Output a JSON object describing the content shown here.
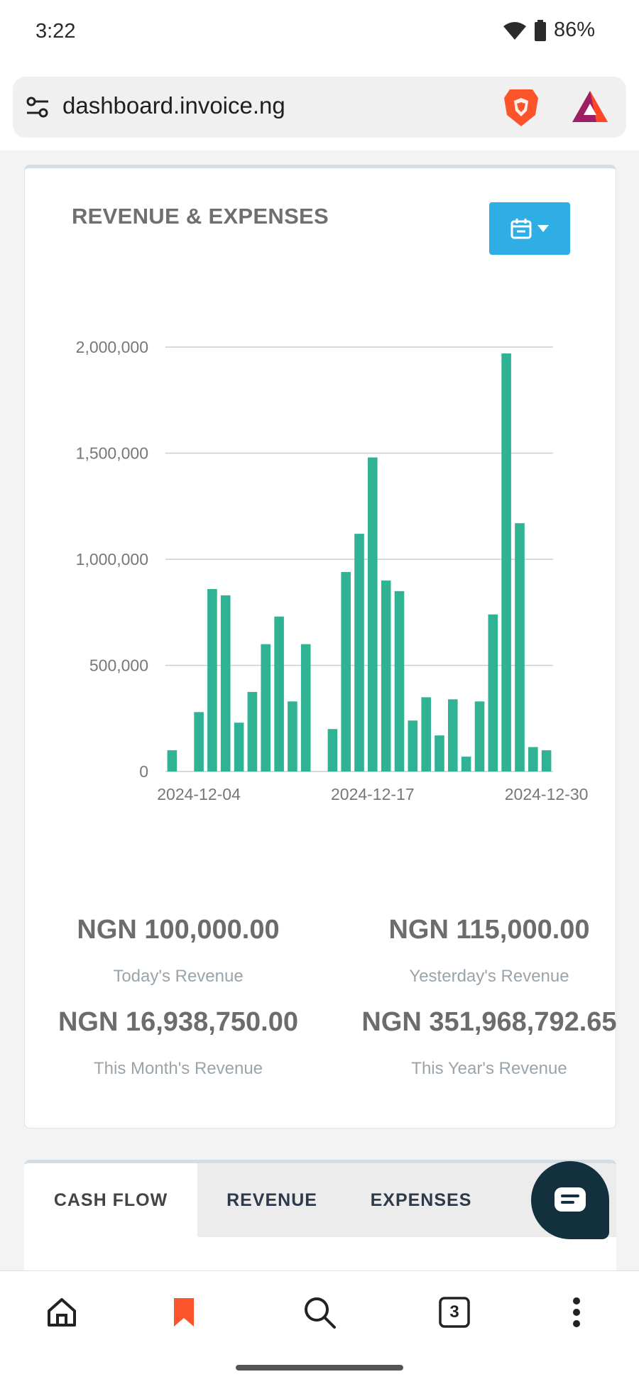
{
  "status_bar": {
    "time": "3:22",
    "battery": "86%"
  },
  "browser": {
    "url": "dashboard.invoice.ng"
  },
  "revenue_card": {
    "title": "REVENUE & EXPENSES",
    "stats": [
      {
        "value": "NGN 100,000.00",
        "label": "Today's Revenue"
      },
      {
        "value": "NGN 115,000.00",
        "label": "Yesterday's Revenue"
      },
      {
        "value": "NGN 16,938,750.00",
        "label": "This Month's Revenue"
      },
      {
        "value": "NGN 351,968,792.65",
        "label": "This Year's Revenue"
      }
    ]
  },
  "chart_data": {
    "type": "bar",
    "title": "",
    "xlabel": "",
    "ylabel": "",
    "ylim": [
      0,
      2000000
    ],
    "yticks": [
      "2,000,000",
      "1,500,000",
      "1,000,000",
      "500,000",
      "0"
    ],
    "ytick_values": [
      2000000,
      1500000,
      1000000,
      500000,
      0
    ],
    "xticks": [
      "2024-12-04",
      "2024-12-17",
      "2024-12-30"
    ],
    "categories": [
      "2024-12-02",
      "2024-12-03",
      "2024-12-04",
      "2024-12-05",
      "2024-12-06",
      "2024-12-07",
      "2024-12-08",
      "2024-12-09",
      "2024-12-10",
      "2024-12-11",
      "2024-12-12",
      "2024-12-13",
      "2024-12-14",
      "2024-12-15",
      "2024-12-16",
      "2024-12-17",
      "2024-12-18",
      "2024-12-19",
      "2024-12-20",
      "2024-12-21",
      "2024-12-22",
      "2024-12-23",
      "2024-12-24",
      "2024-12-25",
      "2024-12-26",
      "2024-12-27",
      "2024-12-28",
      "2024-12-29",
      "2024-12-30"
    ],
    "values": [
      100000,
      0,
      280000,
      860000,
      830000,
      230000,
      375000,
      600000,
      730000,
      330000,
      600000,
      0,
      200000,
      940000,
      1120000,
      1480000,
      900000,
      850000,
      240000,
      350000,
      170000,
      340000,
      70000,
      330000,
      740000,
      1970000,
      1170000,
      115000,
      100000
    ],
    "color": "#2fb394",
    "grid": true,
    "grid_color": "#c8cfd4"
  },
  "tabs": [
    {
      "label": "CASH FLOW",
      "active": true
    },
    {
      "label": "REVENUE",
      "active": false
    },
    {
      "label": "EXPENSES",
      "active": false
    }
  ],
  "bottom_nav": {
    "tab_count": "3"
  },
  "icons": {
    "status": [
      "wifi-icon",
      "battery-icon"
    ],
    "browser": [
      "tune-icon",
      "brave-lion-icon",
      "brave-rewards-icon"
    ],
    "card": [
      "calendar-icon",
      "caret-down-icon"
    ],
    "fab": "chat-icon",
    "nav": [
      "home-icon",
      "bookmark-icon",
      "search-icon",
      "tabs-icon",
      "more-icon"
    ]
  },
  "colors": {
    "accent": "#2eaee4",
    "bar": "#2fb394",
    "brave": "#fb542b",
    "fab": "#13303f"
  }
}
